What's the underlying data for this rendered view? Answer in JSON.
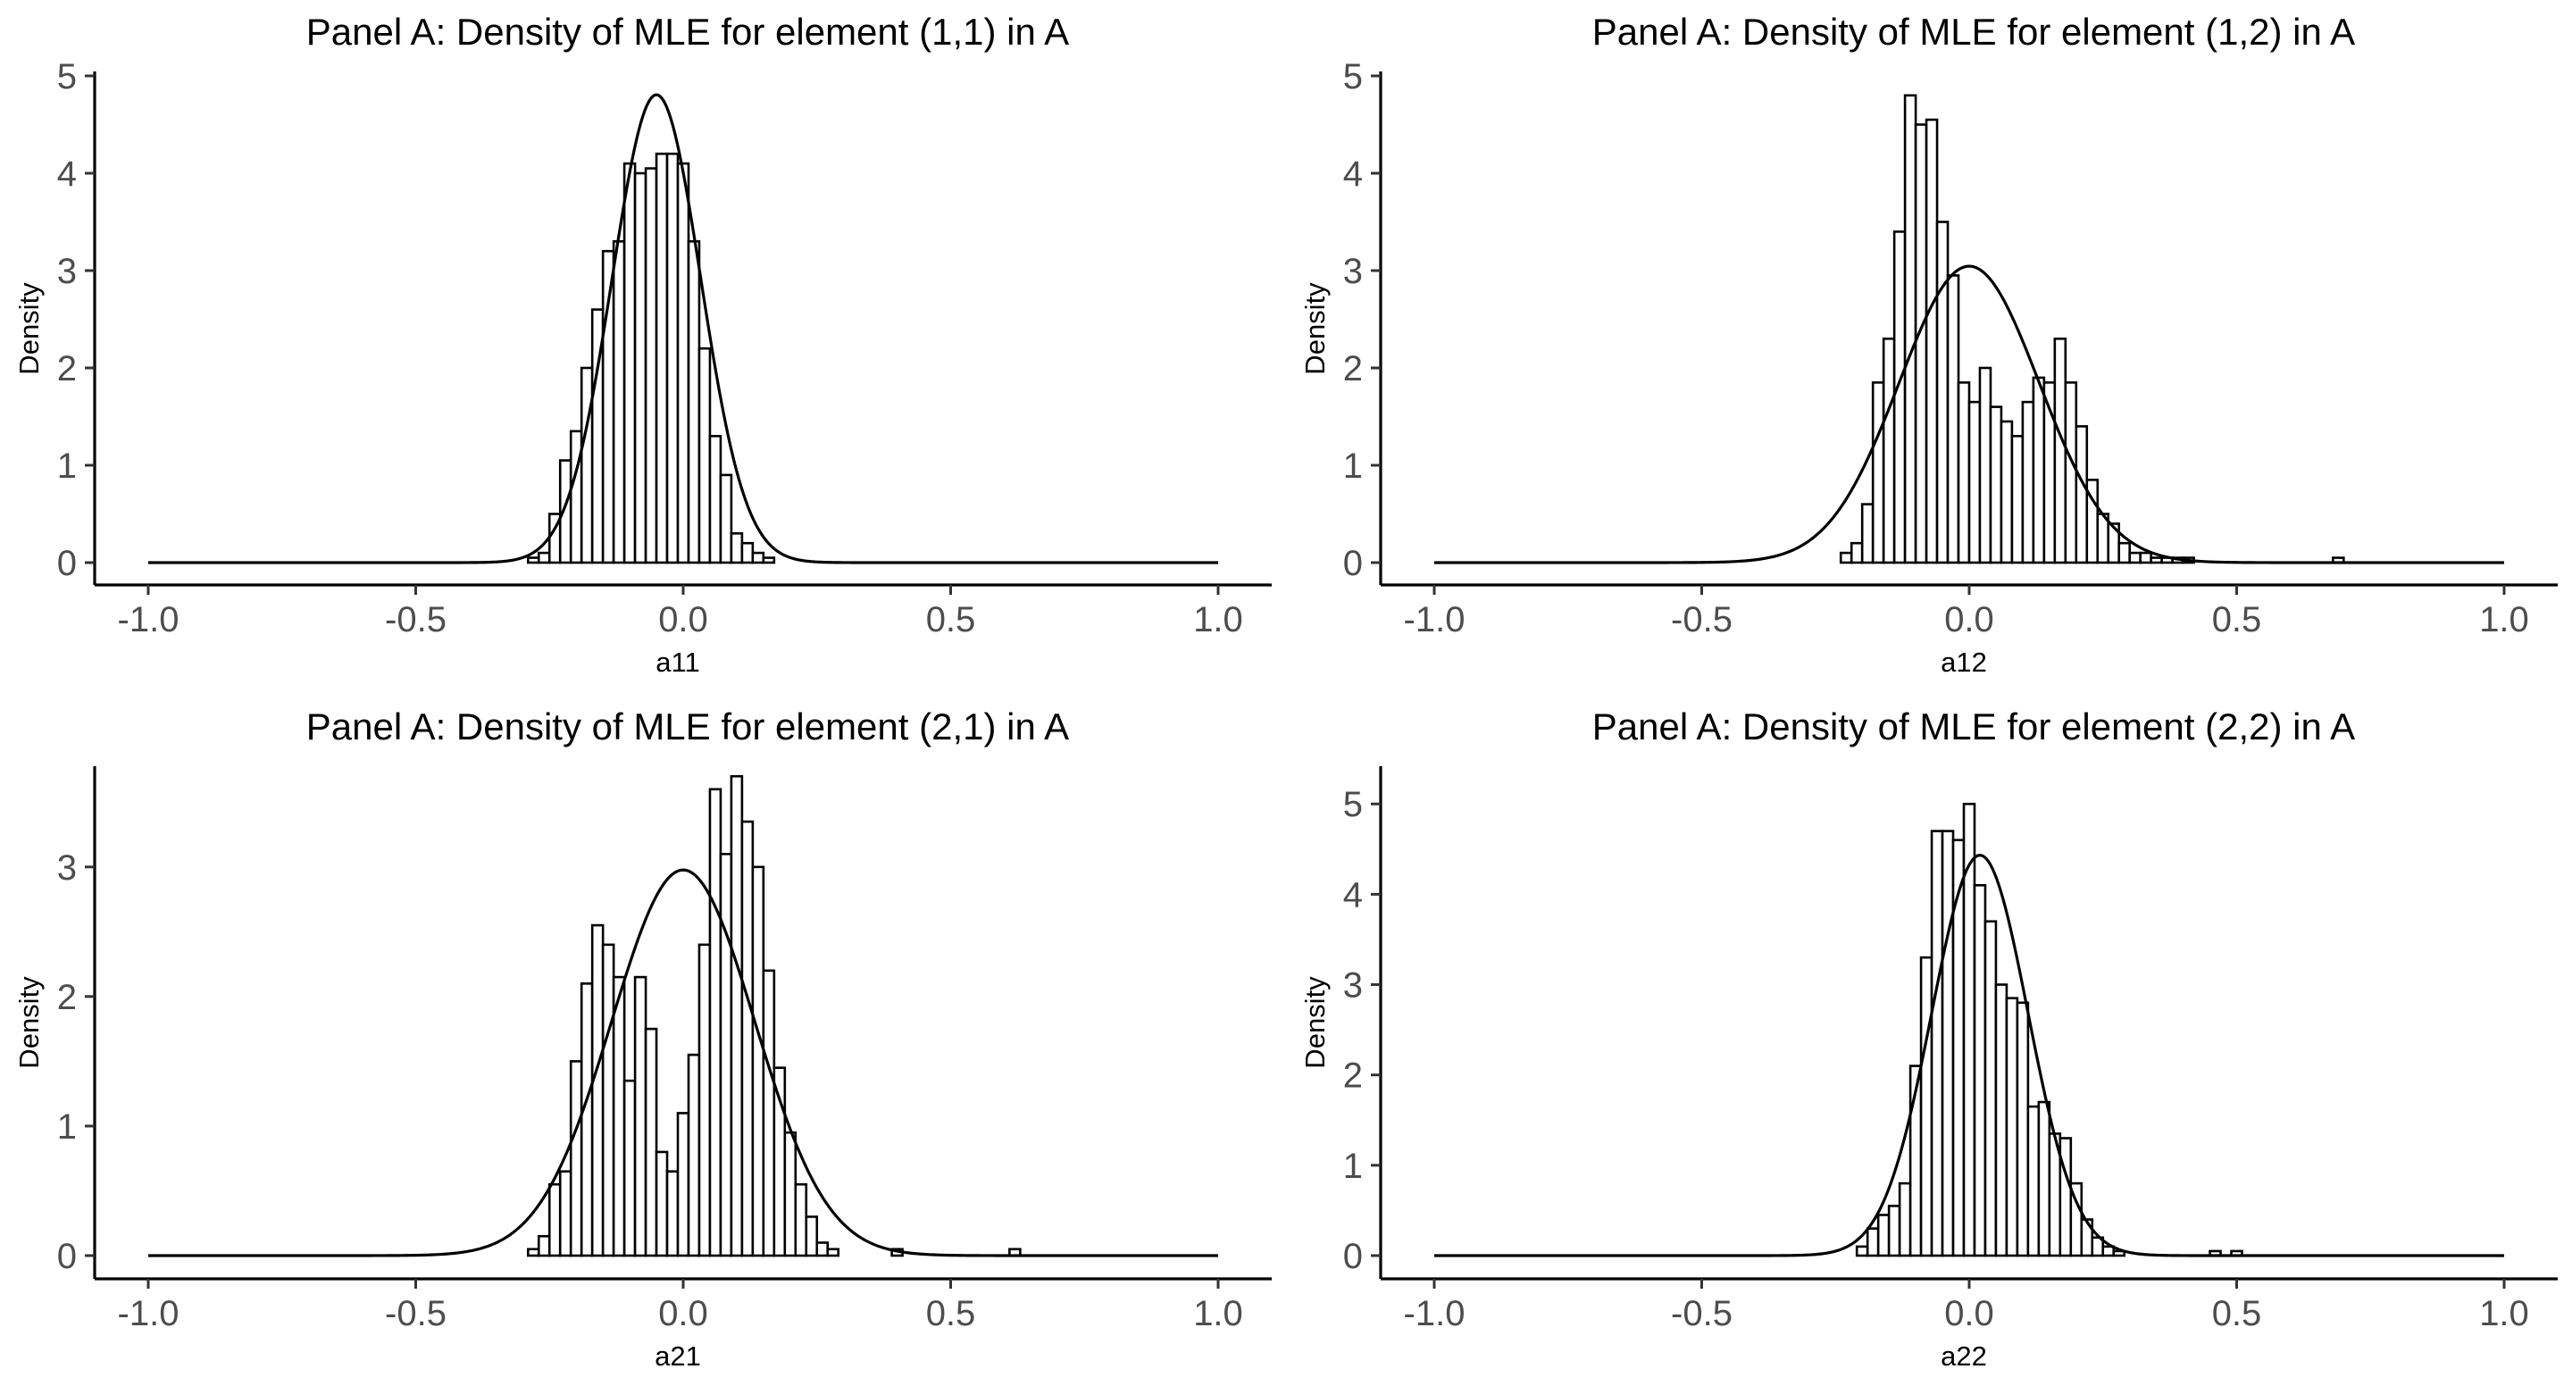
{
  "chart_data": [
    {
      "type": "histogram",
      "title": "Panel A: Density of MLE for element (1,1) in A",
      "xlabel": "a11",
      "ylabel": "Density",
      "xlim": [
        -1.0,
        1.0
      ],
      "ylim": [
        0,
        5
      ],
      "x_ticks": [
        "-1.0",
        "-0.5",
        "0.0",
        "0.5",
        "1.0"
      ],
      "y_ticks": [
        "0",
        "1",
        "2",
        "3",
        "4",
        "5"
      ],
      "bin_width": 0.02,
      "bins": [
        {
          "x": -0.28,
          "y": 0.05
        },
        {
          "x": -0.26,
          "y": 0.1
        },
        {
          "x": -0.24,
          "y": 0.5
        },
        {
          "x": -0.22,
          "y": 1.05
        },
        {
          "x": -0.2,
          "y": 1.35
        },
        {
          "x": -0.18,
          "y": 2.0
        },
        {
          "x": -0.16,
          "y": 2.6
        },
        {
          "x": -0.14,
          "y": 3.2
        },
        {
          "x": -0.12,
          "y": 3.3
        },
        {
          "x": -0.1,
          "y": 4.1
        },
        {
          "x": -0.08,
          "y": 4.0
        },
        {
          "x": -0.06,
          "y": 4.05
        },
        {
          "x": -0.04,
          "y": 4.2
        },
        {
          "x": -0.02,
          "y": 4.2
        },
        {
          "x": 0.0,
          "y": 4.1
        },
        {
          "x": 0.02,
          "y": 3.3
        },
        {
          "x": 0.04,
          "y": 2.2
        },
        {
          "x": 0.06,
          "y": 1.3
        },
        {
          "x": 0.08,
          "y": 0.9
        },
        {
          "x": 0.1,
          "y": 0.3
        },
        {
          "x": 0.12,
          "y": 0.2
        },
        {
          "x": 0.14,
          "y": 0.1
        },
        {
          "x": 0.16,
          "y": 0.05
        }
      ],
      "density": {
        "mean": -0.05,
        "sd": 0.083
      }
    },
    {
      "type": "histogram",
      "title": "Panel A: Density of MLE for element (1,2) in A",
      "xlabel": "a12",
      "ylabel": "Density",
      "xlim": [
        -1.0,
        1.0
      ],
      "ylim": [
        0,
        5
      ],
      "x_ticks": [
        "-1.0",
        "-0.5",
        "0.0",
        "0.5",
        "1.0"
      ],
      "y_ticks": [
        "0",
        "1",
        "2",
        "3",
        "4",
        "5"
      ],
      "bin_width": 0.02,
      "bins": [
        {
          "x": -0.23,
          "y": 0.1
        },
        {
          "x": -0.21,
          "y": 0.2
        },
        {
          "x": -0.19,
          "y": 0.6
        },
        {
          "x": -0.17,
          "y": 1.85
        },
        {
          "x": -0.15,
          "y": 2.3
        },
        {
          "x": -0.13,
          "y": 3.4
        },
        {
          "x": -0.11,
          "y": 4.8
        },
        {
          "x": -0.09,
          "y": 4.5
        },
        {
          "x": -0.07,
          "y": 4.55
        },
        {
          "x": -0.05,
          "y": 3.5
        },
        {
          "x": -0.03,
          "y": 2.95
        },
        {
          "x": -0.01,
          "y": 1.85
        },
        {
          "x": 0.01,
          "y": 1.65
        },
        {
          "x": 0.03,
          "y": 2.0
        },
        {
          "x": 0.05,
          "y": 1.6
        },
        {
          "x": 0.07,
          "y": 1.45
        },
        {
          "x": 0.09,
          "y": 1.3
        },
        {
          "x": 0.11,
          "y": 1.65
        },
        {
          "x": 0.13,
          "y": 1.9
        },
        {
          "x": 0.15,
          "y": 1.85
        },
        {
          "x": 0.17,
          "y": 2.3
        },
        {
          "x": 0.19,
          "y": 1.85
        },
        {
          "x": 0.21,
          "y": 1.4
        },
        {
          "x": 0.23,
          "y": 0.85
        },
        {
          "x": 0.25,
          "y": 0.5
        },
        {
          "x": 0.27,
          "y": 0.4
        },
        {
          "x": 0.29,
          "y": 0.2
        },
        {
          "x": 0.31,
          "y": 0.1
        },
        {
          "x": 0.33,
          "y": 0.1
        },
        {
          "x": 0.35,
          "y": 0.05
        },
        {
          "x": 0.37,
          "y": 0.05
        },
        {
          "x": 0.39,
          "y": 0.05
        },
        {
          "x": 0.41,
          "y": 0.05
        },
        {
          "x": 0.69,
          "y": 0.05
        }
      ],
      "density": {
        "mean": 0.0,
        "sd": 0.131
      }
    },
    {
      "type": "histogram",
      "title": "Panel A: Density of MLE for element (2,1) in A",
      "xlabel": "a21",
      "ylabel": "Density",
      "xlim": [
        -1.0,
        1.0
      ],
      "ylim": [
        0,
        3.75
      ],
      "x_ticks": [
        "-1.0",
        "-0.5",
        "0.0",
        "0.5",
        "1.0"
      ],
      "y_ticks": [
        "0",
        "1",
        "2",
        "3"
      ],
      "bin_width": 0.02,
      "bins": [
        {
          "x": -0.28,
          "y": 0.05
        },
        {
          "x": -0.26,
          "y": 0.15
        },
        {
          "x": -0.24,
          "y": 0.55
        },
        {
          "x": -0.22,
          "y": 0.65
        },
        {
          "x": -0.2,
          "y": 1.5
        },
        {
          "x": -0.18,
          "y": 2.1
        },
        {
          "x": -0.16,
          "y": 2.55
        },
        {
          "x": -0.14,
          "y": 2.4
        },
        {
          "x": -0.12,
          "y": 2.15
        },
        {
          "x": -0.1,
          "y": 1.35
        },
        {
          "x": -0.08,
          "y": 2.15
        },
        {
          "x": -0.06,
          "y": 1.75
        },
        {
          "x": -0.04,
          "y": 0.8
        },
        {
          "x": -0.02,
          "y": 0.65
        },
        {
          "x": 0.0,
          "y": 1.1
        },
        {
          "x": 0.02,
          "y": 1.55
        },
        {
          "x": 0.04,
          "y": 2.4
        },
        {
          "x": 0.06,
          "y": 3.6
        },
        {
          "x": 0.08,
          "y": 3.1
        },
        {
          "x": 0.1,
          "y": 3.7
        },
        {
          "x": 0.12,
          "y": 3.35
        },
        {
          "x": 0.14,
          "y": 3.0
        },
        {
          "x": 0.16,
          "y": 2.2
        },
        {
          "x": 0.18,
          "y": 1.45
        },
        {
          "x": 0.2,
          "y": 0.95
        },
        {
          "x": 0.22,
          "y": 0.55
        },
        {
          "x": 0.24,
          "y": 0.3
        },
        {
          "x": 0.26,
          "y": 0.1
        },
        {
          "x": 0.28,
          "y": 0.05
        },
        {
          "x": 0.4,
          "y": 0.05
        },
        {
          "x": 0.62,
          "y": 0.05
        }
      ],
      "density": {
        "mean": 0.0,
        "sd": 0.134
      }
    },
    {
      "type": "histogram",
      "title": "Panel A: Density of MLE for element (2,2) in A",
      "xlabel": "a22",
      "ylabel": "Density",
      "xlim": [
        -1.0,
        1.0
      ],
      "ylim": [
        0,
        5.2
      ],
      "x_ticks": [
        "-1.0",
        "-0.5",
        "0.0",
        "0.5",
        "1.0"
      ],
      "y_ticks": [
        "0",
        "1",
        "2",
        "3",
        "4",
        "5"
      ],
      "bin_width": 0.02,
      "bins": [
        {
          "x": -0.2,
          "y": 0.1
        },
        {
          "x": -0.18,
          "y": 0.3
        },
        {
          "x": -0.16,
          "y": 0.45
        },
        {
          "x": -0.14,
          "y": 0.55
        },
        {
          "x": -0.12,
          "y": 0.8
        },
        {
          "x": -0.1,
          "y": 2.1
        },
        {
          "x": -0.08,
          "y": 3.3
        },
        {
          "x": -0.06,
          "y": 4.7
        },
        {
          "x": -0.04,
          "y": 4.7
        },
        {
          "x": -0.02,
          "y": 4.6
        },
        {
          "x": 0.0,
          "y": 5.0
        },
        {
          "x": 0.02,
          "y": 4.1
        },
        {
          "x": 0.04,
          "y": 3.7
        },
        {
          "x": 0.06,
          "y": 3.0
        },
        {
          "x": 0.08,
          "y": 2.85
        },
        {
          "x": 0.1,
          "y": 2.8
        },
        {
          "x": 0.12,
          "y": 1.65
        },
        {
          "x": 0.14,
          "y": 1.7
        },
        {
          "x": 0.16,
          "y": 1.35
        },
        {
          "x": 0.18,
          "y": 1.3
        },
        {
          "x": 0.2,
          "y": 0.8
        },
        {
          "x": 0.22,
          "y": 0.4
        },
        {
          "x": 0.24,
          "y": 0.2
        },
        {
          "x": 0.26,
          "y": 0.1
        },
        {
          "x": 0.28,
          "y": 0.05
        },
        {
          "x": 0.46,
          "y": 0.05
        },
        {
          "x": 0.5,
          "y": 0.05
        }
      ],
      "density": {
        "mean": 0.02,
        "sd": 0.09
      }
    }
  ]
}
